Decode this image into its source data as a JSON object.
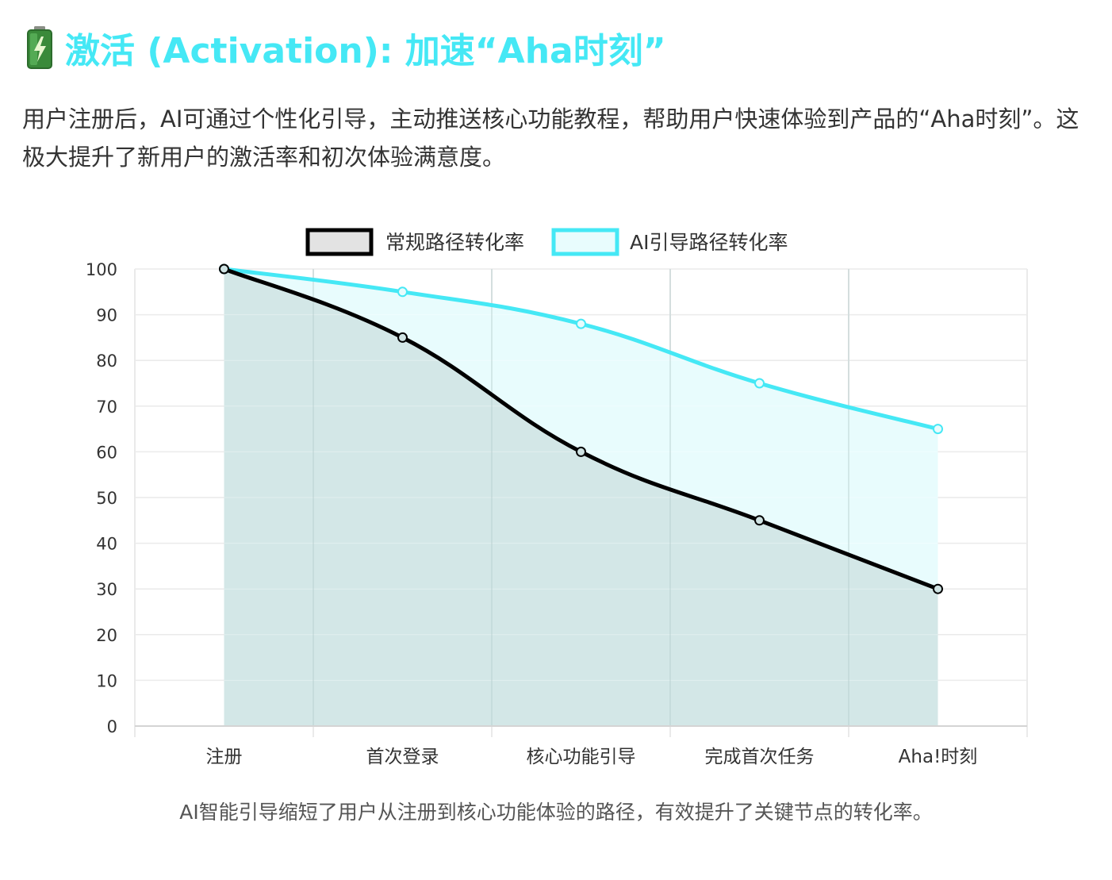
{
  "section": {
    "icon": "battery-icon",
    "title": "激活 (Activation): 加速“Aha时刻”",
    "title_color": "#45e8f5",
    "intro": "用户注册后，AI可通过个性化引导，主动推送核心功能教程，帮助用户快速体验到产品的“Aha时刻”。这极大提升了新用户的激活率和初次体验满意度。"
  },
  "chart_data": {
    "type": "line",
    "categories": [
      "注册",
      "首次登录",
      "核心功能引导",
      "完成首次任务",
      "Aha!时刻"
    ],
    "series": [
      {
        "name": "常规路径转化率",
        "values": [
          100,
          85,
          60,
          45,
          30
        ],
        "color": "#000000",
        "fill": "#cfe3e3"
      },
      {
        "name": "AI引导路径转化率",
        "values": [
          100,
          95,
          88,
          75,
          65
        ],
        "color": "#45e8f5",
        "fill": "#e8fcfd"
      }
    ],
    "ylim": [
      0,
      100
    ],
    "yticks": [
      0,
      10,
      20,
      30,
      40,
      50,
      60,
      70,
      80,
      90,
      100
    ],
    "grid": true,
    "legend": "top-center",
    "area": true
  },
  "caption": "AI智能引导缩短了用户从注册到核心功能体验的路径，有效提升了关键节点的转化率。"
}
